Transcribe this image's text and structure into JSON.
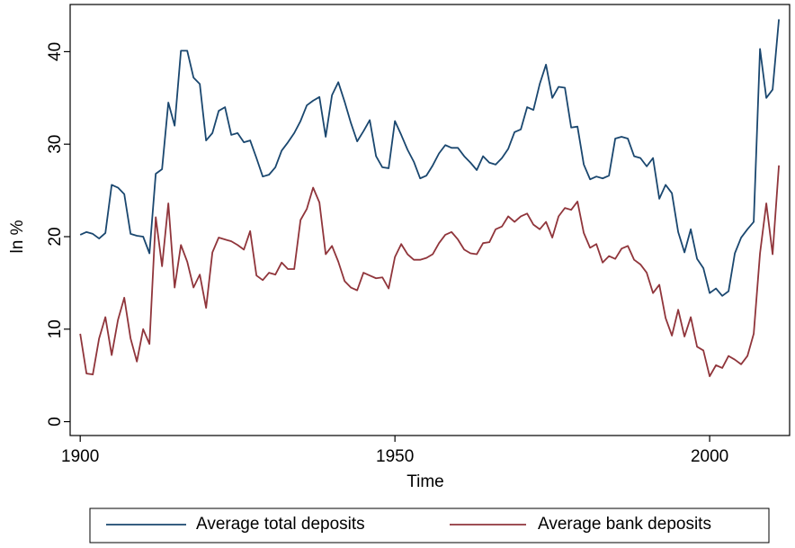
{
  "chart_data": {
    "type": "line",
    "x_label": "Time",
    "y_label": "ln %",
    "x": [
      1900,
      1901,
      1902,
      1903,
      1904,
      1905,
      1906,
      1907,
      1908,
      1909,
      1910,
      1911,
      1912,
      1913,
      1914,
      1915,
      1916,
      1917,
      1918,
      1919,
      1920,
      1921,
      1922,
      1923,
      1924,
      1925,
      1926,
      1927,
      1928,
      1929,
      1930,
      1931,
      1932,
      1933,
      1934,
      1935,
      1936,
      1937,
      1938,
      1939,
      1940,
      1941,
      1942,
      1943,
      1944,
      1945,
      1946,
      1947,
      1948,
      1949,
      1950,
      1951,
      1952,
      1953,
      1954,
      1955,
      1956,
      1957,
      1958,
      1959,
      1960,
      1961,
      1962,
      1963,
      1964,
      1965,
      1966,
      1967,
      1968,
      1969,
      1970,
      1971,
      1972,
      1973,
      1974,
      1975,
      1976,
      1977,
      1978,
      1979,
      1980,
      1981,
      1982,
      1983,
      1984,
      1985,
      1986,
      1987,
      1988,
      1989,
      1990,
      1991,
      1992,
      1993,
      1994,
      1995,
      1996,
      1997,
      1998,
      1999,
      2000,
      2001,
      2002,
      2003,
      2004,
      2005,
      2006,
      2007,
      2008,
      2009,
      2010,
      2011
    ],
    "series": [
      {
        "name": "Average total deposits",
        "color": "#1a476f",
        "values": [
          20.2,
          20.5,
          20.3,
          19.8,
          20.4,
          25.6,
          25.3,
          24.6,
          20.3,
          20.1,
          20.0,
          18.2,
          26.8,
          27.3,
          34.5,
          32.0,
          40.1,
          40.1,
          37.2,
          36.5,
          30.4,
          31.2,
          33.6,
          34.0,
          31.0,
          31.2,
          30.2,
          30.4,
          28.5,
          26.5,
          26.7,
          27.5,
          29.3,
          30.2,
          31.2,
          32.5,
          34.2,
          34.7,
          35.1,
          30.8,
          35.3,
          36.7,
          34.6,
          32.3,
          30.3,
          31.4,
          32.6,
          28.7,
          27.5,
          27.4,
          32.5,
          31.0,
          29.4,
          28.1,
          26.3,
          26.6,
          27.7,
          29.0,
          29.9,
          29.6,
          29.6,
          28.7,
          28.0,
          27.2,
          28.7,
          28.0,
          27.8,
          28.5,
          29.5,
          31.3,
          31.6,
          34.0,
          33.7,
          36.5,
          38.6,
          35.0,
          36.2,
          36.1,
          31.8,
          31.9,
          27.8,
          26.2,
          26.5,
          26.3,
          26.6,
          30.6,
          30.8,
          30.6,
          28.7,
          28.5,
          27.6,
          28.5,
          24.1,
          25.6,
          24.7,
          20.5,
          18.3,
          20.8,
          17.6,
          16.6,
          13.9,
          14.4,
          13.6,
          14.1,
          18.2,
          19.9,
          20.8,
          21.6,
          40.3,
          35.0,
          35.9,
          43.5
        ]
      },
      {
        "name": "Average bank deposits",
        "color": "#90353b",
        "values": [
          9.5,
          5.2,
          5.1,
          9.0,
          11.3,
          7.2,
          11.0,
          13.4,
          9.0,
          6.5,
          10.0,
          8.4,
          22.1,
          16.8,
          23.6,
          14.5,
          19.1,
          17.3,
          14.5,
          15.9,
          12.3,
          18.3,
          19.9,
          19.7,
          19.5,
          19.1,
          18.6,
          20.6,
          15.8,
          15.3,
          16.1,
          15.9,
          17.2,
          16.5,
          16.5,
          21.8,
          23.0,
          25.3,
          23.7,
          18.1,
          19.0,
          17.3,
          15.2,
          14.5,
          14.2,
          16.1,
          15.8,
          15.5,
          15.6,
          14.4,
          17.8,
          19.2,
          18.1,
          17.5,
          17.5,
          17.7,
          18.1,
          19.3,
          20.2,
          20.5,
          19.7,
          18.6,
          18.2,
          18.1,
          19.3,
          19.4,
          20.8,
          21.1,
          22.2,
          21.6,
          22.2,
          22.5,
          21.3,
          20.8,
          21.6,
          19.9,
          22.2,
          23.1,
          22.9,
          23.8,
          20.4,
          18.8,
          19.2,
          17.2,
          17.9,
          17.6,
          18.7,
          19.0,
          17.5,
          17.0,
          16.1,
          13.9,
          14.8,
          11.2,
          9.3,
          12.1,
          9.2,
          11.3,
          8.1,
          7.7,
          4.9,
          6.1,
          5.8,
          7.1,
          6.7,
          6.2,
          7.1,
          9.5,
          18.2,
          23.6,
          18.1,
          27.7
        ]
      }
    ],
    "xlim": [
      1898.4,
      2012.7
    ],
    "ylim": [
      -1.5,
      45.1
    ],
    "xticks": [
      1900,
      1950,
      2000
    ],
    "yticks": [
      0,
      10,
      20,
      30,
      40
    ],
    "grid": false,
    "legend": "bottom"
  }
}
